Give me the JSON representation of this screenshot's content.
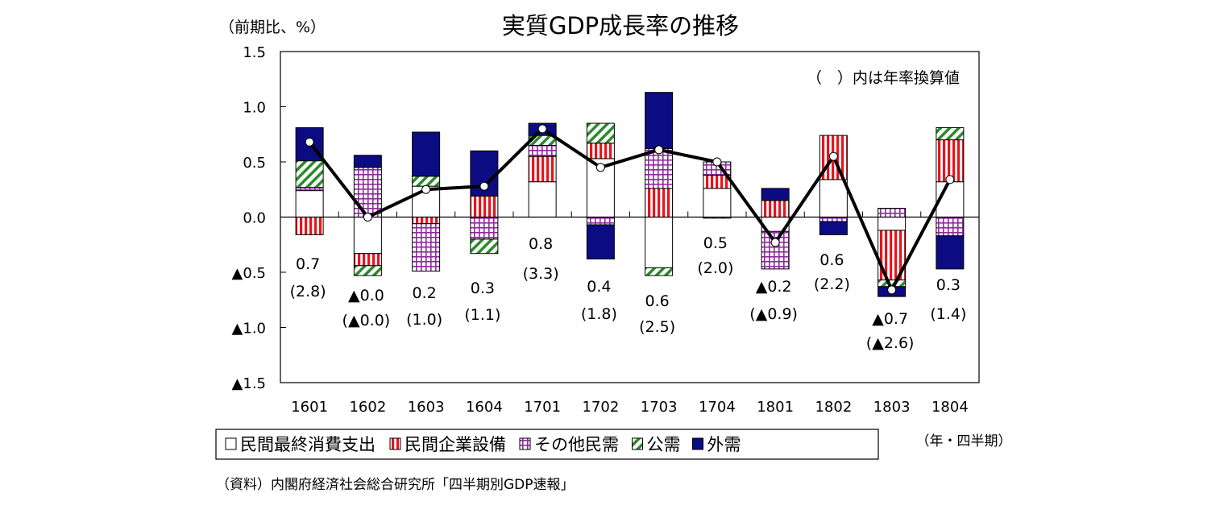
{
  "chart_data": {
    "type": "bar",
    "stacked": true,
    "title": "実質GDP成長率の推移",
    "ylabel": "（前期比、%）",
    "xlabel": "（年・四半期）",
    "annotation": "（　）内は年率換算値",
    "source": "（資料）内閣府経済社会総合研究所「四半期別GDP速報」",
    "ylim": [
      -1.5,
      1.5
    ],
    "yticks": [
      1.5,
      1.0,
      0.5,
      0.0,
      -0.5,
      -1.0,
      -1.5
    ],
    "ytick_labels": [
      "1.5",
      "1.0",
      "0.5",
      "0.0",
      "▲0.5",
      "▲1.0",
      "▲1.5"
    ],
    "grid": false,
    "legend_placement": "bottom",
    "categories": [
      "1601",
      "1602",
      "1603",
      "1604",
      "1701",
      "1702",
      "1703",
      "1704",
      "1801",
      "1802",
      "1803",
      "1804"
    ],
    "series": [
      {
        "name": "民間最終消費支出",
        "pattern": "white",
        "color": "#ffffff",
        "values": [
          0.24,
          -0.33,
          0.28,
          0.0,
          0.32,
          0.53,
          -0.46,
          0.26,
          -0.13,
          0.34,
          -0.12,
          0.32
        ]
      },
      {
        "name": "民間企業設備",
        "pattern": "vertical-stripes",
        "color": "#e8141c",
        "values": [
          -0.16,
          -0.11,
          -0.06,
          0.19,
          0.23,
          0.14,
          0.26,
          0.12,
          0.15,
          0.4,
          -0.45,
          0.38
        ]
      },
      {
        "name": "その他民需",
        "pattern": "grid",
        "color": "#8e2a9e",
        "values": [
          0.03,
          0.45,
          -0.43,
          -0.2,
          0.1,
          -0.07,
          0.36,
          0.12,
          -0.34,
          -0.04,
          0.08,
          -0.17
        ]
      },
      {
        "name": "公需",
        "pattern": "diagonal-stripes",
        "color": "#2a8a2a",
        "values": [
          0.24,
          -0.09,
          0.09,
          -0.13,
          0.09,
          0.18,
          -0.07,
          -0.01,
          0.0,
          0.0,
          -0.06,
          0.11
        ]
      },
      {
        "name": "外需",
        "pattern": "solid",
        "color": "#0c0c82",
        "values": [
          0.3,
          0.11,
          0.4,
          0.41,
          0.11,
          -0.31,
          0.51,
          0.0,
          0.11,
          -0.12,
          -0.09,
          -0.3
        ]
      }
    ],
    "line": {
      "values": [
        0.68,
        0.0,
        0.25,
        0.28,
        0.8,
        0.45,
        0.61,
        0.5,
        -0.23,
        0.55,
        -0.66,
        0.34
      ]
    },
    "data_labels": [
      {
        "value": "0.7",
        "annualized": "(2.8)"
      },
      {
        "value": "▲0.0",
        "annualized": "(▲0.0)"
      },
      {
        "value": "0.2",
        "annualized": "(1.0)"
      },
      {
        "value": "0.3",
        "annualized": "(1.1)"
      },
      {
        "value": "0.8",
        "annualized": "(3.3)"
      },
      {
        "value": "0.4",
        "annualized": "(1.8)"
      },
      {
        "value": "0.6",
        "annualized": "(2.5)"
      },
      {
        "value": "0.5",
        "annualized": "(2.0)"
      },
      {
        "value": "▲0.2",
        "annualized": "(▲0.9)"
      },
      {
        "value": "0.6",
        "annualized": "(2.2)"
      },
      {
        "value": "▲0.7",
        "annualized": "(▲2.6)"
      },
      {
        "value": "0.3",
        "annualized": "(1.4)"
      }
    ]
  }
}
